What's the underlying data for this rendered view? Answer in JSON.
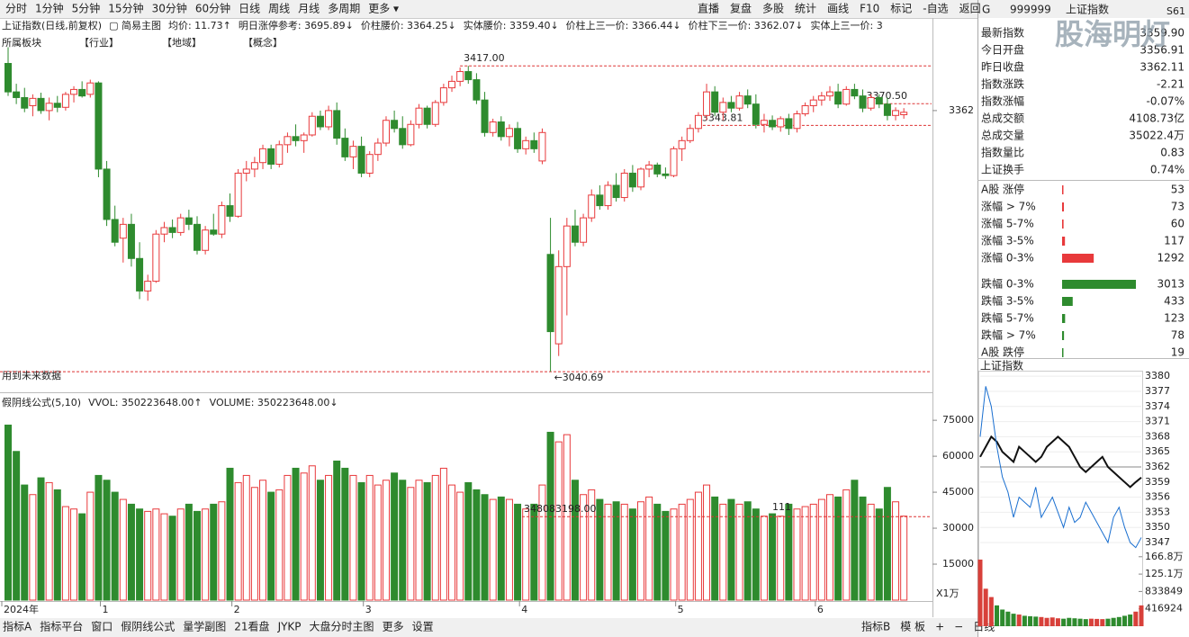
{
  "toolbar": {
    "left": [
      "分时",
      "1分钟",
      "5分钟",
      "15分钟",
      "30分钟",
      "60分钟",
      "日线",
      "周线",
      "月线",
      "多周期",
      "更多 ▾"
    ],
    "right": [
      "直播",
      "复盘",
      "多股",
      "统计",
      "画线",
      "F10",
      "标记",
      "-自选",
      "返回"
    ]
  },
  "info_bar": [
    "上证指数(日线,前复权)",
    "▢ 简易主图",
    "均价: 11.73↑",
    "明日涨停参考: 3695.89↓",
    "价柱腰价: 3364.25↓",
    "实体腰价: 3359.40↓",
    "价柱上三一价: 3366.44↓",
    "价柱下三一价: 3362.07↓",
    "实体上三一价: 3"
  ],
  "sector_bar": [
    "所属板块",
    "【行业】",
    "【地域】",
    "【概念】"
  ],
  "note": "用到未来数据",
  "chart_data": [
    {
      "type": "candlestick",
      "up_color": "#e8393b",
      "down_color": "#2e8b2e",
      "ylim": [
        3022,
        3456
      ],
      "yticks": [
        3362
      ],
      "xticks": [
        {
          "value": 0,
          "label": "2024年"
        },
        {
          "value": 12,
          "label": "1"
        },
        {
          "value": 28,
          "label": "2"
        },
        {
          "value": 44,
          "label": "3"
        },
        {
          "value": 63,
          "label": "4"
        },
        {
          "value": 82,
          "label": "5"
        },
        {
          "value": 99,
          "label": "6"
        }
      ],
      "annotations": [
        {
          "index": 55,
          "value": 3417,
          "label": "3417.00"
        },
        {
          "index": 84,
          "value": 3343.81,
          "label": "3343.81"
        },
        {
          "index": 104,
          "value": 3370.5,
          "label": "3370.50"
        },
        {
          "index": 66,
          "value": 3040.69,
          "label": "←3040.69"
        }
      ],
      "ohlc": [
        [
          3420,
          3440,
          3380,
          3385
        ],
        [
          3385,
          3395,
          3370,
          3378
        ],
        [
          3378,
          3390,
          3360,
          3365
        ],
        [
          3368,
          3382,
          3355,
          3377
        ],
        [
          3377,
          3384,
          3358,
          3362
        ],
        [
          3362,
          3378,
          3350,
          3371
        ],
        [
          3371,
          3380,
          3360,
          3366
        ],
        [
          3366,
          3385,
          3362,
          3382
        ],
        [
          3382,
          3392,
          3372,
          3388
        ],
        [
          3388,
          3398,
          3378,
          3380
        ],
        [
          3382,
          3400,
          3378,
          3396
        ],
        [
          3396,
          3398,
          3280,
          3290
        ],
        [
          3290,
          3300,
          3220,
          3228
        ],
        [
          3228,
          3245,
          3195,
          3200
        ],
        [
          3205,
          3230,
          3175,
          3222
        ],
        [
          3222,
          3235,
          3170,
          3180
        ],
        [
          3180,
          3200,
          3130,
          3140
        ],
        [
          3140,
          3160,
          3128,
          3152
        ],
        [
          3152,
          3215,
          3150,
          3210
        ],
        [
          3210,
          3225,
          3200,
          3218
        ],
        [
          3218,
          3228,
          3205,
          3212
        ],
        [
          3212,
          3235,
          3208,
          3230
        ],
        [
          3230,
          3240,
          3215,
          3222
        ],
        [
          3222,
          3232,
          3185,
          3190
        ],
        [
          3190,
          3220,
          3185,
          3215
        ],
        [
          3215,
          3235,
          3208,
          3210
        ],
        [
          3210,
          3250,
          3205,
          3245
        ],
        [
          3245,
          3260,
          3225,
          3232
        ],
        [
          3232,
          3290,
          3230,
          3285
        ],
        [
          3285,
          3300,
          3275,
          3290
        ],
        [
          3290,
          3305,
          3280,
          3298
        ],
        [
          3298,
          3320,
          3290,
          3315
        ],
        [
          3315,
          3320,
          3290,
          3296
        ],
        [
          3296,
          3325,
          3292,
          3320
        ],
        [
          3320,
          3335,
          3310,
          3330
        ],
        [
          3330,
          3345,
          3318,
          3325
        ],
        [
          3325,
          3335,
          3310,
          3332
        ],
        [
          3332,
          3360,
          3330,
          3355
        ],
        [
          3355,
          3362,
          3338,
          3342
        ],
        [
          3342,
          3368,
          3338,
          3362
        ],
        [
          3362,
          3372,
          3320,
          3328
        ],
        [
          3328,
          3340,
          3300,
          3305
        ],
        [
          3305,
          3325,
          3290,
          3318
        ],
        [
          3318,
          3330,
          3280,
          3285
        ],
        [
          3285,
          3312,
          3280,
          3308
        ],
        [
          3308,
          3328,
          3300,
          3322
        ],
        [
          3322,
          3355,
          3318,
          3350
        ],
        [
          3350,
          3362,
          3335,
          3340
        ],
        [
          3340,
          3355,
          3315,
          3320
        ],
        [
          3320,
          3350,
          3318,
          3345
        ],
        [
          3345,
          3370,
          3340,
          3365
        ],
        [
          3365,
          3368,
          3340,
          3345
        ],
        [
          3345,
          3375,
          3342,
          3372
        ],
        [
          3372,
          3395,
          3368,
          3390
        ],
        [
          3390,
          3405,
          3385,
          3398
        ],
        [
          3398,
          3415,
          3392,
          3410
        ],
        [
          3410,
          3417,
          3395,
          3400
        ],
        [
          3400,
          3408,
          3370,
          3375
        ],
        [
          3375,
          3385,
          3330,
          3335
        ],
        [
          3335,
          3352,
          3330,
          3348
        ],
        [
          3348,
          3355,
          3325,
          3330
        ],
        [
          3330,
          3345,
          3318,
          3340
        ],
        [
          3340,
          3348,
          3310,
          3315
        ],
        [
          3315,
          3330,
          3308,
          3325
        ],
        [
          3325,
          3335,
          3310,
          3315
        ],
        [
          3300,
          3340,
          3296,
          3335
        ],
        [
          3185,
          3230,
          3040.69,
          3090
        ],
        [
          3075,
          3190,
          3060,
          3170
        ],
        [
          3170,
          3230,
          3110,
          3220
        ],
        [
          3220,
          3240,
          3195,
          3200
        ],
        [
          3200,
          3235,
          3195,
          3230
        ],
        [
          3230,
          3265,
          3225,
          3258
        ],
        [
          3258,
          3270,
          3240,
          3245
        ],
        [
          3245,
          3275,
          3240,
          3270
        ],
        [
          3270,
          3285,
          3250,
          3255
        ],
        [
          3255,
          3290,
          3250,
          3285
        ],
        [
          3285,
          3295,
          3262,
          3268
        ],
        [
          3268,
          3292,
          3264,
          3290
        ],
        [
          3290,
          3300,
          3280,
          3295
        ],
        [
          3295,
          3298,
          3280,
          3284
        ],
        [
          3284,
          3292,
          3278,
          3282
        ],
        [
          3282,
          3318,
          3280,
          3315
        ],
        [
          3315,
          3330,
          3300,
          3325
        ],
        [
          3325,
          3345,
          3322,
          3340
        ],
        [
          3340,
          3360,
          3335,
          3356
        ],
        [
          3356,
          3395,
          3350,
          3385
        ],
        [
          3385,
          3392,
          3355,
          3360
        ],
        [
          3360,
          3378,
          3350,
          3372
        ],
        [
          3372,
          3380,
          3360,
          3365
        ],
        [
          3365,
          3385,
          3362,
          3380
        ],
        [
          3380,
          3388,
          3365,
          3370
        ],
        [
          3370,
          3382,
          3340,
          3345
        ],
        [
          3345,
          3358,
          3335,
          3350
        ],
        [
          3350,
          3356,
          3338,
          3342
        ],
        [
          3342,
          3355,
          3336,
          3352
        ],
        [
          3352,
          3358,
          3332,
          3340
        ],
        [
          3340,
          3362,
          3335,
          3358
        ],
        [
          3358,
          3372,
          3355,
          3368
        ],
        [
          3368,
          3380,
          3360,
          3375
        ],
        [
          3375,
          3385,
          3368,
          3380
        ],
        [
          3380,
          3392,
          3374,
          3385
        ],
        [
          3385,
          3395,
          3365,
          3370
        ],
        [
          3370,
          3392,
          3368,
          3388
        ],
        [
          3388,
          3395,
          3376,
          3380
        ],
        [
          3380,
          3388,
          3360,
          3365
        ],
        [
          3365,
          3382,
          3362,
          3378
        ],
        [
          3378,
          3382,
          3365,
          3370
        ],
        [
          3370,
          3378,
          3350,
          3356
        ],
        [
          3356,
          3366,
          3350,
          3362
        ],
        [
          3356.91,
          3365,
          3352,
          3359.9
        ]
      ]
    },
    {
      "type": "bar",
      "header": [
        "假阴线公式(5,10)",
        "VVOL: 350223648.00↑",
        "VOLUME: 350223648.00↓"
      ],
      "header_colors": [
        "#222",
        "#222",
        "#1a73c8"
      ],
      "ylim": [
        0,
        78800
      ],
      "yticks": [
        15000,
        30000,
        45000,
        60000,
        75000
      ],
      "unit_label": "X1万",
      "reference": {
        "value": 34808.3198,
        "label": "348083198.00"
      },
      "marker_text": "111",
      "values": [
        73000,
        62000,
        48000,
        44000,
        51000,
        49000,
        46000,
        39000,
        38000,
        36000,
        45000,
        52000,
        50000,
        45000,
        42000,
        40000,
        38000,
        37000,
        38000,
        36000,
        35000,
        38000,
        40000,
        37000,
        38000,
        40000,
        41000,
        55000,
        49000,
        52000,
        47000,
        50000,
        45000,
        46000,
        52000,
        55000,
        53000,
        56000,
        50000,
        52000,
        58000,
        55000,
        52000,
        49000,
        52000,
        48000,
        50000,
        53000,
        50000,
        47000,
        50000,
        49000,
        52000,
        55000,
        48000,
        45000,
        49000,
        46000,
        44000,
        42000,
        43000,
        42000,
        40000,
        38000,
        40000,
        48000,
        70000,
        66000,
        69000,
        50000,
        44000,
        46000,
        42000,
        40000,
        41000,
        40000,
        38000,
        41000,
        43000,
        40000,
        37000,
        38000,
        40000,
        42000,
        45000,
        48000,
        43000,
        40000,
        42000,
        40000,
        41000,
        38000,
        35000,
        36000,
        35000,
        40000,
        38000,
        39000,
        40000,
        42000,
        44000,
        43000,
        46000,
        50000,
        43000,
        40000,
        38000,
        47000,
        41000,
        35022.4
      ]
    },
    {
      "type": "line",
      "title": "上证指数",
      "ylim": [
        3345.4,
        3381.1
      ],
      "yticks": [
        3380,
        3377,
        3374,
        3371,
        3368,
        3365,
        3362,
        3359,
        3356,
        3353,
        3350,
        3347
      ],
      "base": 3362,
      "series": [
        {
          "color": "#111111",
          "values": [
            3364,
            3366,
            3368,
            3367,
            3365,
            3364,
            3363,
            3366,
            3365,
            3364,
            3363,
            3364,
            3366,
            3367,
            3368,
            3367,
            3366,
            3364,
            3362,
            3361,
            3362,
            3363,
            3364,
            3362,
            3361,
            3360,
            3359,
            3358,
            3359,
            3359.9
          ]
        },
        {
          "color": "#1a6fd0",
          "values": [
            3368,
            3378,
            3374,
            3366,
            3360,
            3357,
            3352,
            3356,
            3355,
            3354,
            3358,
            3352,
            3354,
            3356,
            3353,
            3350,
            3354,
            3351,
            3352,
            3355,
            3353,
            3351,
            3349,
            3347,
            3352,
            3354,
            3350,
            3347,
            3346,
            3348
          ]
        }
      ],
      "y2lim": [
        0,
        1750000
      ],
      "y2ticks": [
        {
          "value": 1668000,
          "label": "166.8万"
        },
        {
          "value": 1251000,
          "label": "125.1万"
        },
        833849,
        416924
      ],
      "volume": [
        1600000,
        900000,
        700000,
        500000,
        400000,
        350000,
        300000,
        280000,
        250000,
        240000,
        230000,
        220000,
        200000,
        210000,
        190000,
        180000,
        200000,
        190000,
        180000,
        170000,
        180000,
        175000,
        170000,
        180000,
        200000,
        220000,
        250000,
        280000,
        350000,
        500000
      ]
    }
  ],
  "quote_panel": {
    "prefix": "G",
    "code": "999999",
    "name": "上证指数",
    "tag": "S61",
    "watermark": "股海明灯",
    "rows": [
      {
        "label": "最新指数",
        "value": "3359.90",
        "color": "#2e8b2e"
      },
      {
        "label": "今日开盘",
        "value": "3356.91",
        "color": "#2e8b2e"
      },
      {
        "label": "昨日收盘",
        "value": "3362.11",
        "color": "#222222"
      },
      {
        "label": "指数涨跌",
        "value": "-2.21",
        "color": "#2e8b2e"
      },
      {
        "label": "指数涨幅",
        "value": "-0.07%",
        "color": "#2e8b2e"
      },
      {
        "label": "总成交额",
        "value": "4108.73亿",
        "color": "#222222"
      },
      {
        "label": "总成交量",
        "value": "35022.4万",
        "color": "#222222"
      },
      {
        "label": "指数量比",
        "value": "0.83",
        "color": "#2e8b2e"
      },
      {
        "label": "上证换手",
        "value": "0.74%",
        "color": "#222222"
      }
    ]
  },
  "breadth": {
    "max": 3013,
    "up_color": "#e8393b",
    "down_color": "#2e8b2e",
    "rows": [
      {
        "label": "A股 涨停",
        "value": 53,
        "side": "up"
      },
      {
        "label": "涨幅 > 7%",
        "value": 73,
        "side": "up"
      },
      {
        "label": "涨幅 5-7%",
        "value": 60,
        "side": "up"
      },
      {
        "label": "涨幅 3-5%",
        "value": 117,
        "side": "up"
      },
      {
        "label": "涨幅 0-3%",
        "value": 1292,
        "side": "up"
      },
      {
        "label": "跌幅 0-3%",
        "value": 3013,
        "side": "down"
      },
      {
        "label": "跌幅 3-5%",
        "value": 433,
        "side": "down"
      },
      {
        "label": "跌幅 5-7%",
        "value": 123,
        "side": "down"
      },
      {
        "label": "跌幅 > 7%",
        "value": 78,
        "side": "down"
      },
      {
        "label": "A股 跌停",
        "value": 19,
        "side": "down"
      }
    ]
  },
  "bottom_tabs": {
    "left": [
      "指标A",
      "指标平台",
      "窗口",
      "假阴线公式",
      "量学副图",
      "21看盘",
      "JYKP",
      "大盘分时主图",
      "更多",
      "设置"
    ],
    "active": 3,
    "right": [
      "指标B",
      "模 板",
      "+",
      "−",
      "日线"
    ]
  }
}
